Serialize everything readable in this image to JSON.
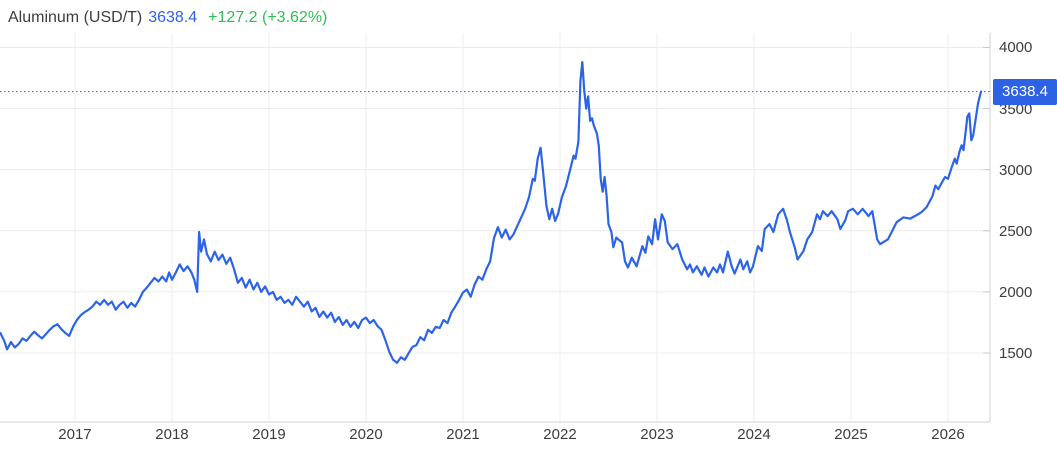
{
  "header": {
    "title": "Aluminum (USD/T)",
    "price": "3638.4",
    "change": "+127.2 (+3.62%)"
  },
  "price_badge": "3638.4",
  "colors": {
    "line": "#2c64e8",
    "badge_bg": "#2d62e4",
    "price_text": "#2e63e8",
    "change_text": "#2fbe54",
    "grid": "#ececec",
    "axis": "#d2d2d2",
    "tick": "#c9c9c9",
    "label": "#3d3d3d",
    "dotted_line": "#2c64e8"
  },
  "chart_data": {
    "type": "line",
    "title": "Aluminum (USD/T)",
    "current_value": 3638.4,
    "change_abs": 127.2,
    "change_pct": 3.62,
    "x_ticks": [
      2017,
      2018,
      2019,
      2020,
      2021,
      2022,
      2023,
      2024,
      2025,
      2026
    ],
    "y_ticks": [
      1500,
      2000,
      2500,
      3000,
      3500,
      4000
    ],
    "xlim": [
      2016.227,
      2026.433
    ],
    "ylim": [
      936,
      4118
    ],
    "grid": true,
    "legend_position": "none",
    "series": [
      {
        "name": "Aluminum USD/T",
        "points": [
          [
            2016.23,
            1665
          ],
          [
            2016.27,
            1600
          ],
          [
            2016.3,
            1530
          ],
          [
            2016.34,
            1590
          ],
          [
            2016.38,
            1545
          ],
          [
            2016.42,
            1575
          ],
          [
            2016.46,
            1620
          ],
          [
            2016.5,
            1600
          ],
          [
            2016.54,
            1640
          ],
          [
            2016.58,
            1675
          ],
          [
            2016.62,
            1645
          ],
          [
            2016.66,
            1620
          ],
          [
            2016.7,
            1655
          ],
          [
            2016.74,
            1690
          ],
          [
            2016.78,
            1720
          ],
          [
            2016.82,
            1735
          ],
          [
            2016.86,
            1695
          ],
          [
            2016.9,
            1665
          ],
          [
            2016.94,
            1640
          ],
          [
            2016.98,
            1715
          ],
          [
            2017.02,
            1770
          ],
          [
            2017.06,
            1810
          ],
          [
            2017.1,
            1835
          ],
          [
            2017.14,
            1855
          ],
          [
            2017.18,
            1880
          ],
          [
            2017.22,
            1920
          ],
          [
            2017.26,
            1895
          ],
          [
            2017.3,
            1935
          ],
          [
            2017.34,
            1895
          ],
          [
            2017.38,
            1920
          ],
          [
            2017.42,
            1855
          ],
          [
            2017.46,
            1895
          ],
          [
            2017.5,
            1920
          ],
          [
            2017.54,
            1870
          ],
          [
            2017.58,
            1910
          ],
          [
            2017.62,
            1880
          ],
          [
            2017.66,
            1935
          ],
          [
            2017.7,
            2000
          ],
          [
            2017.74,
            2035
          ],
          [
            2017.78,
            2075
          ],
          [
            2017.82,
            2115
          ],
          [
            2017.86,
            2085
          ],
          [
            2017.9,
            2125
          ],
          [
            2017.94,
            2085
          ],
          [
            2017.97,
            2160
          ],
          [
            2018.0,
            2100
          ],
          [
            2018.04,
            2160
          ],
          [
            2018.08,
            2225
          ],
          [
            2018.12,
            2170
          ],
          [
            2018.16,
            2210
          ],
          [
            2018.2,
            2160
          ],
          [
            2018.23,
            2100
          ],
          [
            2018.26,
            2000
          ],
          [
            2018.28,
            2490
          ],
          [
            2018.3,
            2330
          ],
          [
            2018.33,
            2430
          ],
          [
            2018.36,
            2310
          ],
          [
            2018.4,
            2250
          ],
          [
            2018.44,
            2330
          ],
          [
            2018.48,
            2260
          ],
          [
            2018.52,
            2305
          ],
          [
            2018.56,
            2230
          ],
          [
            2018.6,
            2280
          ],
          [
            2018.64,
            2185
          ],
          [
            2018.68,
            2075
          ],
          [
            2018.72,
            2115
          ],
          [
            2018.76,
            2035
          ],
          [
            2018.8,
            2100
          ],
          [
            2018.84,
            2020
          ],
          [
            2018.88,
            2075
          ],
          [
            2018.92,
            2000
          ],
          [
            2018.96,
            2045
          ],
          [
            2019.0,
            1980
          ],
          [
            2019.04,
            2000
          ],
          [
            2019.08,
            1935
          ],
          [
            2019.12,
            1960
          ],
          [
            2019.16,
            1910
          ],
          [
            2019.2,
            1935
          ],
          [
            2019.24,
            1895
          ],
          [
            2019.28,
            1960
          ],
          [
            2019.32,
            1920
          ],
          [
            2019.36,
            1880
          ],
          [
            2019.4,
            1920
          ],
          [
            2019.44,
            1840
          ],
          [
            2019.48,
            1870
          ],
          [
            2019.52,
            1795
          ],
          [
            2019.56,
            1840
          ],
          [
            2019.6,
            1790
          ],
          [
            2019.64,
            1830
          ],
          [
            2019.68,
            1755
          ],
          [
            2019.72,
            1795
          ],
          [
            2019.76,
            1730
          ],
          [
            2019.8,
            1770
          ],
          [
            2019.84,
            1715
          ],
          [
            2019.88,
            1755
          ],
          [
            2019.92,
            1705
          ],
          [
            2019.96,
            1770
          ],
          [
            2020.0,
            1790
          ],
          [
            2020.04,
            1745
          ],
          [
            2020.08,
            1770
          ],
          [
            2020.12,
            1720
          ],
          [
            2020.16,
            1690
          ],
          [
            2020.2,
            1605
          ],
          [
            2020.24,
            1510
          ],
          [
            2020.28,
            1445
          ],
          [
            2020.32,
            1420
          ],
          [
            2020.36,
            1465
          ],
          [
            2020.4,
            1445
          ],
          [
            2020.44,
            1500
          ],
          [
            2020.48,
            1550
          ],
          [
            2020.52,
            1565
          ],
          [
            2020.56,
            1630
          ],
          [
            2020.6,
            1605
          ],
          [
            2020.64,
            1690
          ],
          [
            2020.68,
            1665
          ],
          [
            2020.72,
            1715
          ],
          [
            2020.76,
            1705
          ],
          [
            2020.8,
            1770
          ],
          [
            2020.84,
            1745
          ],
          [
            2020.88,
            1830
          ],
          [
            2020.92,
            1880
          ],
          [
            2020.96,
            1935
          ],
          [
            2021.0,
            1995
          ],
          [
            2021.04,
            2020
          ],
          [
            2021.08,
            1960
          ],
          [
            2021.12,
            2060
          ],
          [
            2021.16,
            2125
          ],
          [
            2021.2,
            2100
          ],
          [
            2021.24,
            2185
          ],
          [
            2021.28,
            2250
          ],
          [
            2021.32,
            2440
          ],
          [
            2021.36,
            2530
          ],
          [
            2021.4,
            2445
          ],
          [
            2021.44,
            2510
          ],
          [
            2021.48,
            2430
          ],
          [
            2021.52,
            2470
          ],
          [
            2021.56,
            2540
          ],
          [
            2021.6,
            2610
          ],
          [
            2021.64,
            2680
          ],
          [
            2021.68,
            2775
          ],
          [
            2021.72,
            2925
          ],
          [
            2021.74,
            2910
          ],
          [
            2021.77,
            3090
          ],
          [
            2021.8,
            3180
          ],
          [
            2021.83,
            2950
          ],
          [
            2021.86,
            2705
          ],
          [
            2021.89,
            2595
          ],
          [
            2021.92,
            2680
          ],
          [
            2021.95,
            2580
          ],
          [
            2021.98,
            2640
          ],
          [
            2022.02,
            2775
          ],
          [
            2022.06,
            2860
          ],
          [
            2022.1,
            2985
          ],
          [
            2022.14,
            3115
          ],
          [
            2022.16,
            3090
          ],
          [
            2022.19,
            3230
          ],
          [
            2022.21,
            3725
          ],
          [
            2022.23,
            3880
          ],
          [
            2022.25,
            3650
          ],
          [
            2022.27,
            3500
          ],
          [
            2022.29,
            3600
          ],
          [
            2022.31,
            3400
          ],
          [
            2022.33,
            3420
          ],
          [
            2022.35,
            3360
          ],
          [
            2022.38,
            3295
          ],
          [
            2022.4,
            3195
          ],
          [
            2022.42,
            2925
          ],
          [
            2022.44,
            2820
          ],
          [
            2022.46,
            2940
          ],
          [
            2022.48,
            2785
          ],
          [
            2022.5,
            2555
          ],
          [
            2022.53,
            2490
          ],
          [
            2022.55,
            2365
          ],
          [
            2022.58,
            2445
          ],
          [
            2022.6,
            2430
          ],
          [
            2022.64,
            2405
          ],
          [
            2022.67,
            2250
          ],
          [
            2022.7,
            2200
          ],
          [
            2022.74,
            2280
          ],
          [
            2022.79,
            2210
          ],
          [
            2022.85,
            2375
          ],
          [
            2022.88,
            2320
          ],
          [
            2022.91,
            2455
          ],
          [
            2022.95,
            2390
          ],
          [
            2022.98,
            2595
          ],
          [
            2023.01,
            2430
          ],
          [
            2023.05,
            2635
          ],
          [
            2023.08,
            2580
          ],
          [
            2023.11,
            2405
          ],
          [
            2023.16,
            2350
          ],
          [
            2023.21,
            2390
          ],
          [
            2023.26,
            2265
          ],
          [
            2023.31,
            2185
          ],
          [
            2023.34,
            2225
          ],
          [
            2023.37,
            2160
          ],
          [
            2023.41,
            2210
          ],
          [
            2023.46,
            2140
          ],
          [
            2023.49,
            2200
          ],
          [
            2023.53,
            2125
          ],
          [
            2023.58,
            2200
          ],
          [
            2023.62,
            2160
          ],
          [
            2023.65,
            2225
          ],
          [
            2023.68,
            2160
          ],
          [
            2023.73,
            2330
          ],
          [
            2023.77,
            2210
          ],
          [
            2023.8,
            2150
          ],
          [
            2023.86,
            2265
          ],
          [
            2023.89,
            2185
          ],
          [
            2023.93,
            2250
          ],
          [
            2023.96,
            2160
          ],
          [
            2023.99,
            2210
          ],
          [
            2024.04,
            2375
          ],
          [
            2024.08,
            2335
          ],
          [
            2024.11,
            2515
          ],
          [
            2024.16,
            2555
          ],
          [
            2024.2,
            2490
          ],
          [
            2024.25,
            2635
          ],
          [
            2024.3,
            2680
          ],
          [
            2024.34,
            2585
          ],
          [
            2024.37,
            2490
          ],
          [
            2024.42,
            2365
          ],
          [
            2024.45,
            2265
          ],
          [
            2024.51,
            2335
          ],
          [
            2024.55,
            2430
          ],
          [
            2024.6,
            2490
          ],
          [
            2024.65,
            2635
          ],
          [
            2024.68,
            2595
          ],
          [
            2024.71,
            2660
          ],
          [
            2024.76,
            2620
          ],
          [
            2024.8,
            2660
          ],
          [
            2024.86,
            2595
          ],
          [
            2024.89,
            2515
          ],
          [
            2024.94,
            2585
          ],
          [
            2024.97,
            2660
          ],
          [
            2025.02,
            2680
          ],
          [
            2025.07,
            2635
          ],
          [
            2025.12,
            2680
          ],
          [
            2025.18,
            2620
          ],
          [
            2025.22,
            2660
          ],
          [
            2025.27,
            2430
          ],
          [
            2025.3,
            2390
          ],
          [
            2025.35,
            2415
          ],
          [
            2025.38,
            2430
          ],
          [
            2025.42,
            2490
          ],
          [
            2025.47,
            2570
          ],
          [
            2025.54,
            2610
          ],
          [
            2025.61,
            2600
          ],
          [
            2025.68,
            2630
          ],
          [
            2025.73,
            2655
          ],
          [
            2025.78,
            2695
          ],
          [
            2025.84,
            2785
          ],
          [
            2025.87,
            2870
          ],
          [
            2025.9,
            2840
          ],
          [
            2025.94,
            2900
          ],
          [
            2025.97,
            2940
          ],
          [
            2026.0,
            2925
          ],
          [
            2026.04,
            3025
          ],
          [
            2026.07,
            3090
          ],
          [
            2026.09,
            3050
          ],
          [
            2026.12,
            3150
          ],
          [
            2026.14,
            3200
          ],
          [
            2026.16,
            3160
          ],
          [
            2026.2,
            3435
          ],
          [
            2026.22,
            3460
          ],
          [
            2026.24,
            3240
          ],
          [
            2026.26,
            3280
          ],
          [
            2026.31,
            3545
          ],
          [
            2026.34,
            3638.4
          ]
        ]
      }
    ]
  }
}
